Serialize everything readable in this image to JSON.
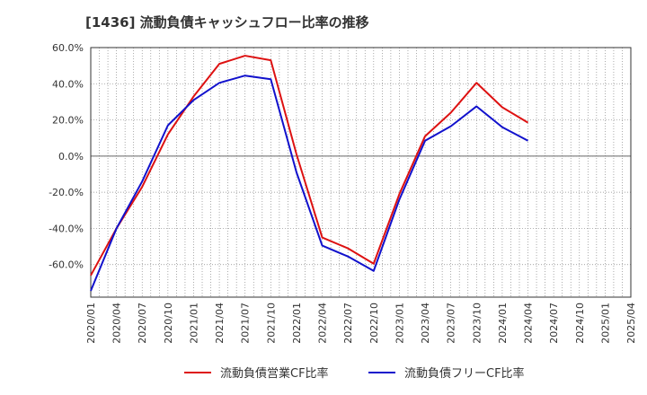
{
  "chart_data": {
    "type": "line",
    "title": "[1436]  流動負債キャッシュフロー比率の推移",
    "xlabel": "",
    "ylabel": "",
    "x": [
      "2020/01",
      "2020/04",
      "2020/07",
      "2020/10",
      "2021/01",
      "2021/04",
      "2021/07",
      "2021/10",
      "2022/01",
      "2022/04",
      "2022/07",
      "2022/10",
      "2023/01",
      "2023/04",
      "2023/07",
      "2023/10",
      "2024/01",
      "2024/04",
      "2024/07",
      "2024/10",
      "2025/01",
      "2025/04"
    ],
    "ylim": [
      -78,
      60
    ],
    "yticks": [
      60,
      40,
      20,
      0,
      -20,
      -40,
      -60
    ],
    "ytick_labels": [
      "60.0%",
      "40.0%",
      "20.0%",
      "0.0%",
      "-20.0%",
      "-40.0%",
      "-60.0%"
    ],
    "grid": true,
    "legend_position": "bottom",
    "series": [
      {
        "name": "流動負債営業CF比率",
        "color": "#dd1111",
        "values": [
          -66,
          -40,
          -17,
          12,
          33,
          51,
          55.5,
          53,
          1,
          -45,
          -51,
          -59.5,
          -21,
          11,
          24,
          40.5,
          27,
          18.5,
          null,
          null,
          null,
          null
        ]
      },
      {
        "name": "流動負債フリーCF比率",
        "color": "#1111cc",
        "values": [
          -74.5,
          -40,
          -14,
          17,
          31,
          40.5,
          44.5,
          42.5,
          -9,
          -49.5,
          -55.5,
          -63.5,
          -24,
          8.5,
          16.5,
          27.5,
          16,
          8.5,
          null,
          null,
          null,
          null
        ]
      }
    ]
  }
}
